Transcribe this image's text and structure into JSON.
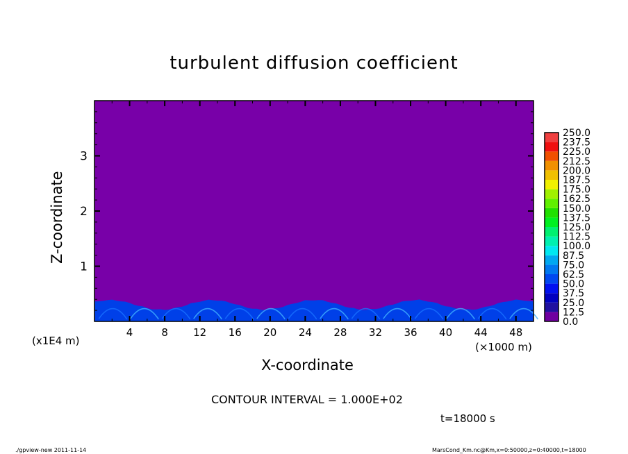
{
  "chart_data": {
    "type": "heatmap",
    "title": "turbulent diffusion coefficient",
    "xlabel": "X-coordinate",
    "ylabel": "Z-coordinate",
    "x_unit": "(×1000 m)",
    "y_unit": "(x1E4 m)",
    "xlim": [
      0,
      50
    ],
    "ylim": [
      0,
      4
    ],
    "x_ticks": [
      "4",
      "8",
      "12",
      "16",
      "20",
      "24",
      "28",
      "32",
      "36",
      "40",
      "44",
      "48"
    ],
    "y_ticks": [
      "1",
      "2",
      "3"
    ],
    "x_tick_values": [
      4,
      8,
      12,
      16,
      20,
      24,
      28,
      32,
      36,
      40,
      44,
      48
    ],
    "y_tick_values": [
      1,
      2,
      3
    ],
    "field_description_values": {
      "background_value": 0.0,
      "turbulent_layer_top_z": 0.4
    },
    "colorbar": {
      "levels": [
        "0.0",
        "12.5",
        "25.0",
        "37.5",
        "50.0",
        "62.5",
        "75.0",
        "87.5",
        "100.0",
        "112.5",
        "125.0",
        "137.5",
        "150.0",
        "162.5",
        "175.0",
        "187.5",
        "200.0",
        "212.5",
        "225.0",
        "237.5",
        "250.0"
      ],
      "colors": [
        "#7000a0",
        "#2010a0",
        "#0000c0",
        "#0010f0",
        "#0048f0",
        "#0078f0",
        "#00a8f0",
        "#00e8f0",
        "#00f0b0",
        "#00f070",
        "#00f020",
        "#20e000",
        "#60f000",
        "#a0f000",
        "#f0f000",
        "#f0c000",
        "#f09000",
        "#f05000",
        "#f01010",
        "#f04040",
        "#f08080"
      ]
    },
    "annotation_contour": "CONTOUR INTERVAL = 1.000E+02",
    "annotation_time": "t=18000 s"
  },
  "footer": {
    "left": "./gpview-new   2011-11-14",
    "right": "MarsCond_Km.nc@Km,x=0:50000,z=0:40000,t=18000"
  }
}
